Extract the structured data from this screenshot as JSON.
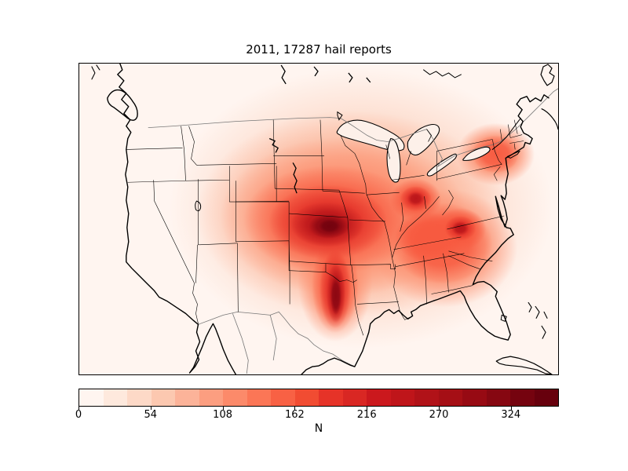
{
  "figure": {
    "title": "2011, 17287 hail reports",
    "year": "2011",
    "report_count": "17287"
  },
  "chart_data": {
    "type": "heatmap",
    "subtype": "filled-contour map (kernel density of hail reports)",
    "title": "2011, 17287 hail reports",
    "region": "contiguous United States with southern Canada, northern Mexico, Cuba and the Bahamas",
    "colormap": "Reds",
    "colorbar": {
      "label": "N",
      "orientation": "horizontal",
      "vmin": 0,
      "vmax": 360,
      "ticks": [
        0,
        54,
        108,
        162,
        216,
        270,
        324
      ],
      "n_segments": 20,
      "segment_step": 18,
      "colors": [
        "#fff5f0",
        "#fee9dd",
        "#fdd9c7",
        "#fcc8b0",
        "#fcb399",
        "#fc9e80",
        "#fc8a6a",
        "#fb7656",
        "#f86144",
        "#f14c32",
        "#e63328",
        "#d92723",
        "#cb181d",
        "#bf151a",
        "#b11218",
        "#a50f15",
        "#970a13",
        "#860711",
        "#75030f",
        "#67000d"
      ]
    },
    "hotspots": [
      {
        "name": "southern Kansas / northern Oklahoma",
        "approx_peak_N": 355
      },
      {
        "name": "north-central Texas (Red River region)",
        "approx_peak_N": 300
      },
      {
        "name": "central Indiana / western Ohio",
        "approx_peak_N": 270
      },
      {
        "name": "western North Carolina / southern Virginia",
        "approx_peak_N": 270
      },
      {
        "name": "Kentucky / Tennessee",
        "approx_peak_N": 220
      },
      {
        "name": "upstate New York / northern Pennsylvania",
        "approx_peak_N": 160
      },
      {
        "name": "broad Great Plains through Midwest and Southeast",
        "approx_peak_N": 120
      }
    ],
    "minima": [
      {
        "name": "West Coast / Rocky Mountain states",
        "approx_N": 0
      },
      {
        "name": "Florida peninsula and Gulf waters",
        "approx_N": 10
      },
      {
        "name": "northern Plains / Canada border",
        "approx_N": 20
      }
    ],
    "legend_position": "bottom colorbar",
    "grid": false
  }
}
